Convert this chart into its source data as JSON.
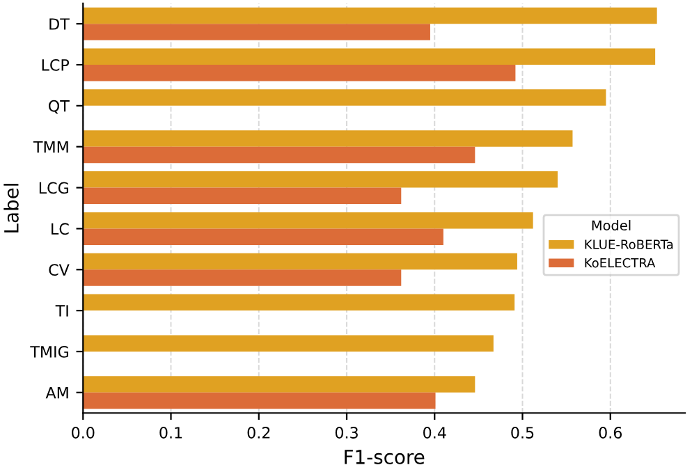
{
  "chart_data": {
    "type": "bar",
    "orientation": "horizontal",
    "xlabel": "F1-score",
    "ylabel": "Label",
    "legend_title": "Model",
    "categories": [
      "DT",
      "LCP",
      "QT",
      "TMM",
      "LCG",
      "LC",
      "CV",
      "TI",
      "TMIG",
      "AM"
    ],
    "series": [
      {
        "name": "KLUE-RoBERTa",
        "color": "#e0a122",
        "values": [
          0.653,
          0.651,
          0.595,
          0.557,
          0.54,
          0.512,
          0.494,
          0.491,
          0.467,
          0.446
        ]
      },
      {
        "name": "KoELECTRA",
        "color": "#dc6c38",
        "values": [
          0.395,
          0.492,
          null,
          0.446,
          0.362,
          0.41,
          0.362,
          null,
          null,
          0.401
        ]
      }
    ],
    "xlim": [
      0,
      0.685
    ],
    "xticks": [
      {
        "value": 0,
        "label": "0.0"
      },
      0.1,
      0.2,
      0.3,
      0.4,
      0.5,
      0.6
    ],
    "grid": "x",
    "legend": "right"
  }
}
